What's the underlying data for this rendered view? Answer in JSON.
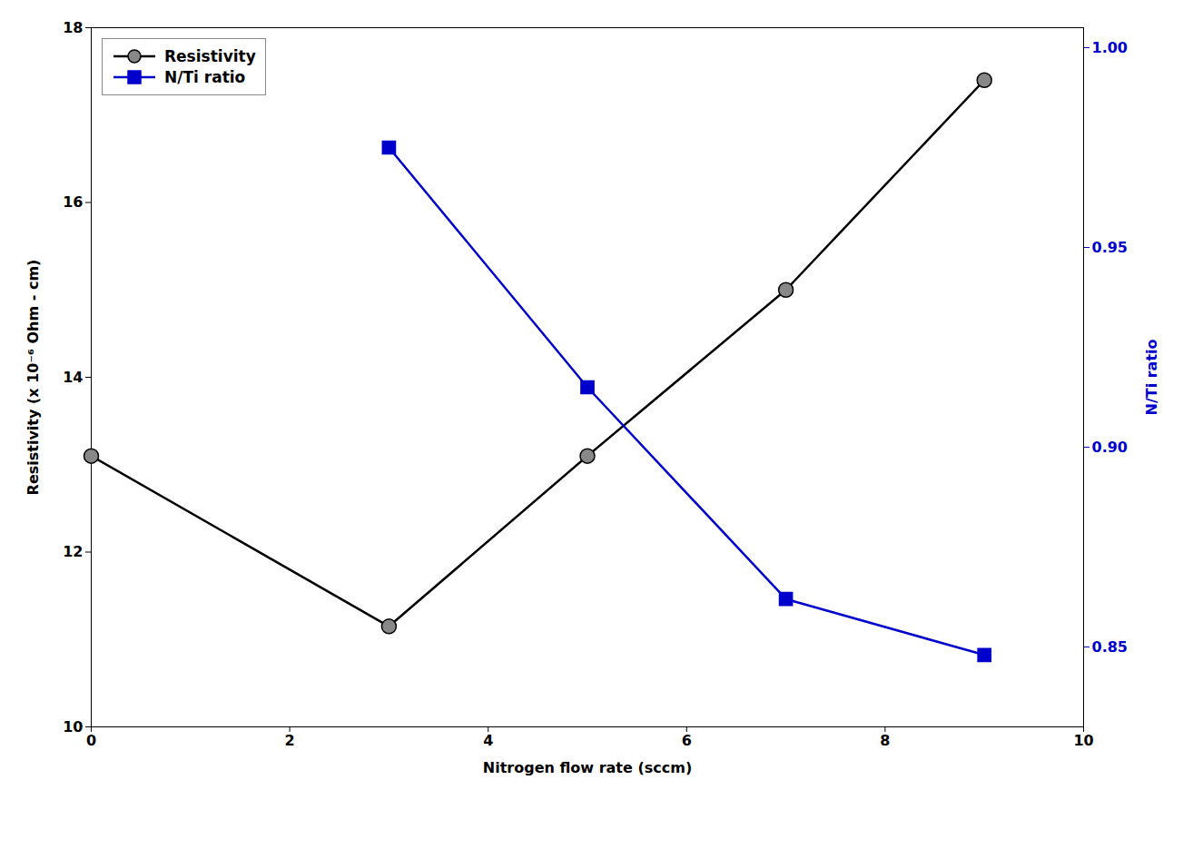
{
  "chart_data": {
    "type": "line",
    "x": [
      0,
      3,
      5,
      7,
      9
    ],
    "xlabel": "Nitrogen flow rate (sccm)",
    "ylabel": "Resistivity (x 10⁻⁶ Ohm - cm)",
    "y2label": "N/Ti ratio",
    "xlim": [
      0,
      10
    ],
    "xticks": [
      0,
      2,
      4,
      6,
      8,
      10
    ],
    "ylim": [
      10,
      18
    ],
    "yticks": [
      10,
      12,
      14,
      16,
      18
    ],
    "y2lim": [
      0.83,
      1.005
    ],
    "y2ticks": [
      0.85,
      {
        "value": 0.9,
        "label": "0.90"
      },
      0.95,
      {
        "value": 1.0,
        "label": "1.00"
      }
    ],
    "legend": "upper left",
    "series": [
      {
        "name": "Resistivity",
        "color": "#000000",
        "marker": "circle",
        "values": [
          13.1,
          11.15,
          13.1,
          15.0,
          17.4
        ]
      },
      {
        "name": "N/Ti ratio",
        "color": "#0000cc",
        "marker": "square",
        "axis": "y2",
        "values": [
          null,
          0.975,
          0.915,
          0.862,
          0.848
        ]
      }
    ]
  }
}
